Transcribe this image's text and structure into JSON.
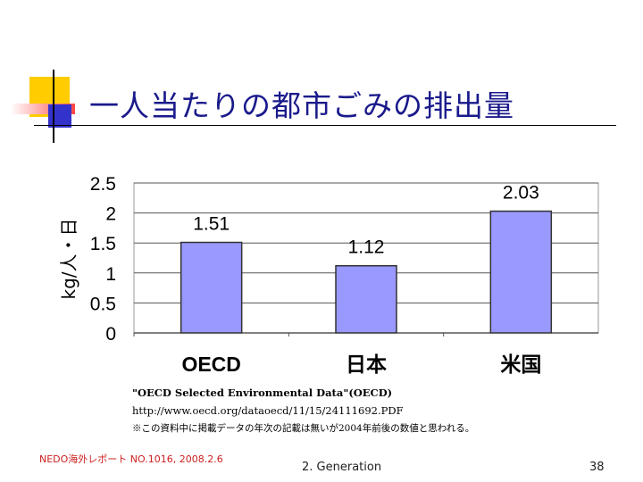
{
  "slide": {
    "title": "一人当たりの都市ごみの排出量",
    "footer_left": "NEDO海外レポート NO.1016, 2008.2.6",
    "footer_center": "2. Generation",
    "page_number": "38"
  },
  "colors": {
    "title": "#1a1a8c",
    "bar_fill": "#9999ff",
    "deco_yellow": "#ffcc00",
    "deco_red": "#ff3333",
    "deco_blue": "#3333cc",
    "footer_left": "#cc2020"
  },
  "chart_data": {
    "type": "bar",
    "categories": [
      "OECD",
      "日本",
      "米国"
    ],
    "values": [
      1.51,
      1.12,
      2.03
    ],
    "value_labels": [
      "1.51",
      "1.12",
      "2.03"
    ],
    "ylabel": "kg/人・日",
    "ylim": [
      0,
      2.5
    ],
    "yticks": [
      0,
      0.5,
      1,
      1.5,
      2,
      2.5
    ],
    "ytick_labels": [
      "0",
      "0.5",
      "1",
      "1.5",
      "2",
      "2.5"
    ],
    "grid": true,
    "legend": "none"
  },
  "source_notes": [
    "\"OECD Selected Environmental Data\"(OECD)",
    "http://www.oecd.org/dataoecd/11/15/24111692.PDF",
    "※この資料中に掲載データの年次の記載は無いが2004年前後の数値と思われる。"
  ]
}
